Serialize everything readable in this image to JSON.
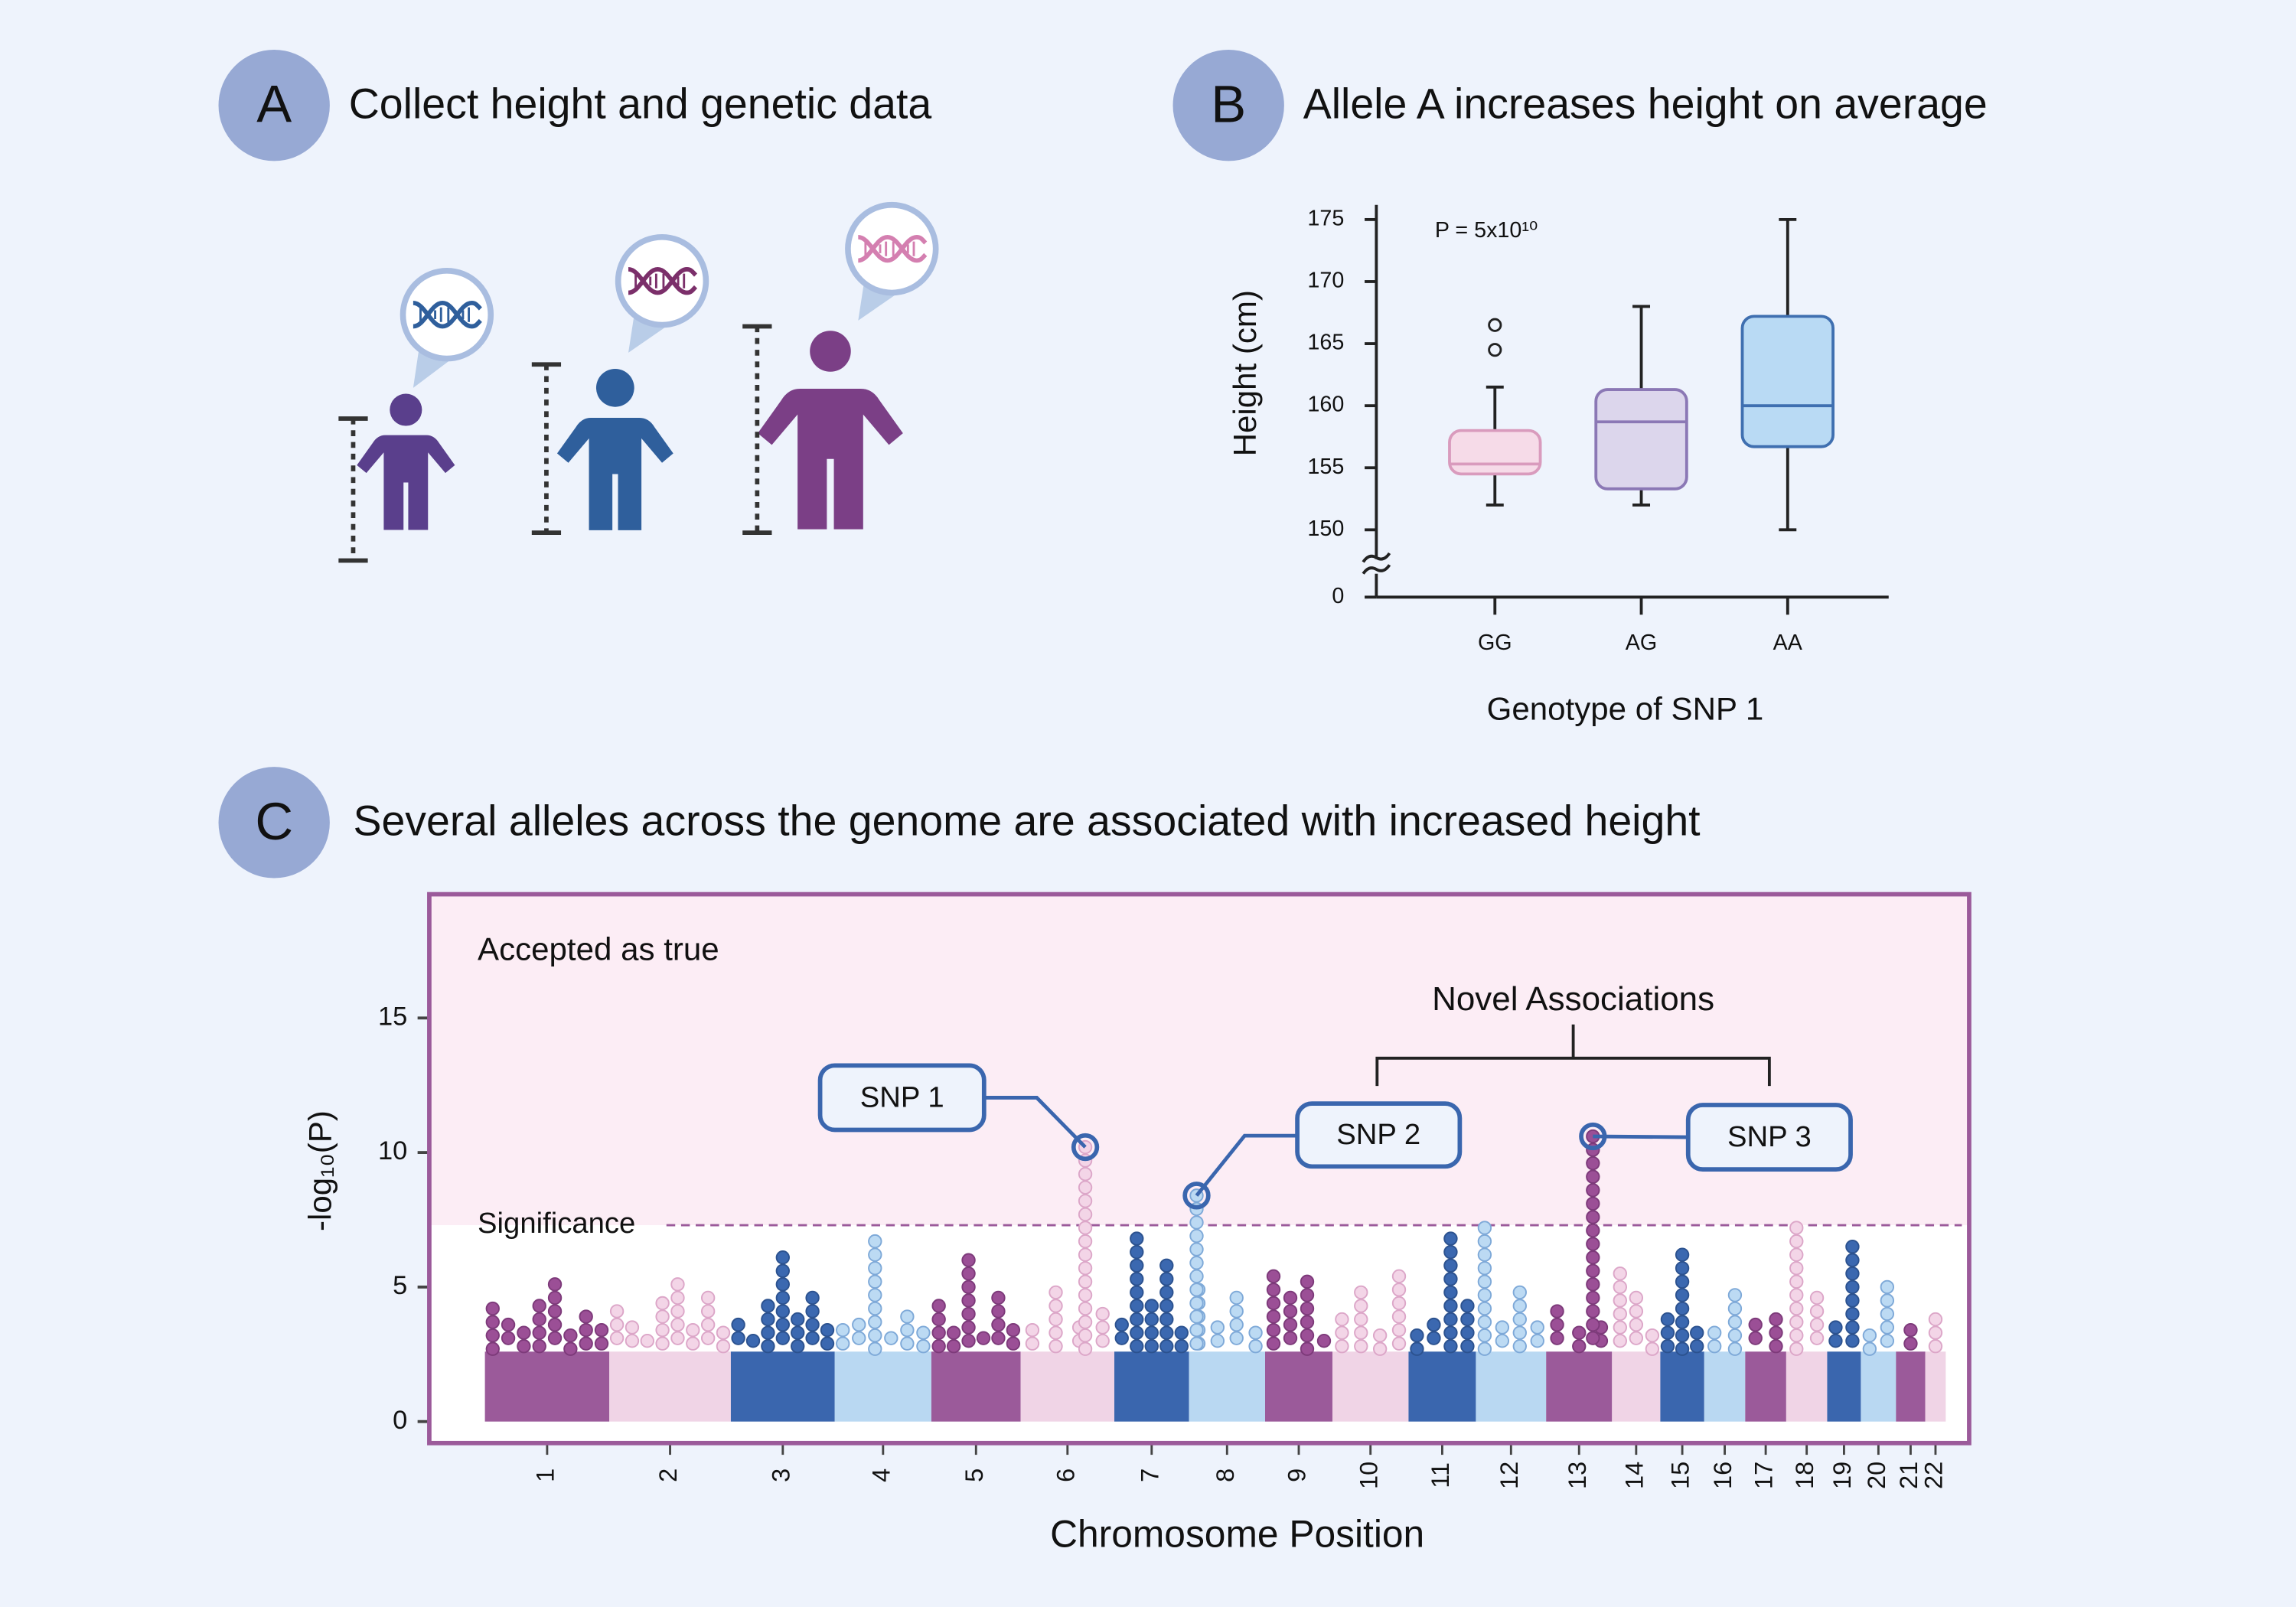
{
  "panels": [
    {
      "letter": "A",
      "title": "Collect height and genetic data"
    },
    {
      "letter": "B",
      "title": "Allele A increases height on average"
    },
    {
      "letter": "C",
      "title": "Several alleles across the genome are associated with increased height"
    }
  ],
  "chart_data": [
    {
      "type": "box",
      "annotation": "P = 5x10¹⁰",
      "ylabel": "Height (cm)",
      "xlabel": "Genotype of SNP 1",
      "categories": [
        "GG",
        "AG",
        "AA"
      ],
      "boxes": [
        {
          "min": 152,
          "q1": 154.5,
          "median": 155.3,
          "q3": 158,
          "max": 161.5,
          "outliers": [
            164.5,
            166.5
          ],
          "fill": "#f6dbe8",
          "stroke": "#d99bbd"
        },
        {
          "min": 152,
          "q1": 153.3,
          "median": 158.7,
          "q3": 161.3,
          "max": 168,
          "outliers": [],
          "fill": "#dcd6ec",
          "stroke": "#8b78b5"
        },
        {
          "min": 150,
          "q1": 156.7,
          "median": 160,
          "q3": 167.2,
          "max": 175,
          "outliers": [],
          "fill": "#b9daf4",
          "stroke": "#3f6fb0"
        }
      ],
      "ylim": [
        0,
        175
      ],
      "axis_break": [
        0,
        150
      ],
      "yticks": [
        0,
        150,
        155,
        160,
        165,
        170,
        175
      ]
    },
    {
      "type": "manhattan",
      "ylabel": "-log₁₀(P)",
      "xlabel": "Chromosome Position",
      "region_label": "Accepted as true",
      "significance_label": "Significance",
      "significance": 7.3,
      "annotation": "Novel Associations",
      "baseline": 2.6,
      "ylim": [
        -0.8,
        19.6
      ],
      "yticks": [
        0,
        5,
        10,
        15
      ],
      "colors": [
        {
          "band": "#9b5a9a",
          "dot": "#9b4f96",
          "edge": "#7d3a7a"
        },
        {
          "band": "#f0d4e6",
          "dot": "#f3d5e7",
          "edge": "#dca6c8"
        },
        {
          "band": "#3a66ae",
          "dot": "#3b68b0",
          "edge": "#2c528f"
        },
        {
          "band": "#b9d8f2",
          "dot": "#bcdaf3",
          "edge": "#7ea9d8"
        }
      ],
      "chromosomes": [
        {
          "name": "1",
          "peaks": [
            4.2,
            3.6,
            3.3,
            4.3,
            5.1,
            3.2,
            3.9,
            3.4
          ]
        },
        {
          "name": "2",
          "peaks": [
            4.1,
            3.5,
            3.0,
            4.4,
            5.1,
            3.4,
            4.6,
            3.3
          ]
        },
        {
          "name": "3",
          "peaks": [
            3.6,
            3.0,
            4.3,
            6.1,
            3.8,
            4.6,
            3.4
          ]
        },
        {
          "name": "4",
          "peaks": [
            3.4,
            3.6,
            6.7,
            3.1,
            3.9,
            3.3
          ]
        },
        {
          "name": "5",
          "peaks": [
            4.3,
            3.3,
            6.0,
            3.1,
            4.6,
            3.4
          ]
        },
        {
          "name": "6",
          "peaks": [
            3.4,
            4.8,
            3.5,
            4.0
          ],
          "highlight": {
            "label": "SNP 1",
            "value": 10.2
          }
        },
        {
          "name": "7",
          "peaks": [
            3.6,
            6.8,
            4.3,
            5.8,
            3.3
          ]
        },
        {
          "name": "8",
          "peaks": [
            4.9,
            3.5,
            4.6,
            3.3
          ],
          "highlight": {
            "label": "SNP 2",
            "value": 8.4
          }
        },
        {
          "name": "9",
          "peaks": [
            5.4,
            4.6,
            5.2,
            3.0
          ]
        },
        {
          "name": "10",
          "peaks": [
            3.8,
            4.8,
            3.2,
            5.4
          ]
        },
        {
          "name": "11",
          "peaks": [
            3.2,
            3.6,
            6.8,
            4.3
          ]
        },
        {
          "name": "12",
          "peaks": [
            7.2,
            3.5,
            4.8,
            3.5
          ]
        },
        {
          "name": "13",
          "peaks": [
            4.1,
            3.3,
            3.5
          ],
          "highlight": {
            "label": "SNP 3",
            "value": 10.6
          }
        },
        {
          "name": "14",
          "peaks": [
            5.5,
            4.6,
            3.2
          ]
        },
        {
          "name": "15",
          "peaks": [
            3.8,
            6.2,
            3.3
          ]
        },
        {
          "name": "16",
          "peaks": [
            3.3,
            4.7
          ]
        },
        {
          "name": "17",
          "peaks": [
            3.6,
            3.8
          ]
        },
        {
          "name": "18",
          "peaks": [
            7.2,
            4.6
          ]
        },
        {
          "name": "19",
          "peaks": [
            3.5,
            6.5
          ]
        },
        {
          "name": "20",
          "peaks": [
            3.2,
            5.0
          ]
        },
        {
          "name": "21",
          "peaks": [
            3.4
          ]
        },
        {
          "name": "22",
          "peaks": [
            3.8
          ]
        }
      ]
    }
  ]
}
